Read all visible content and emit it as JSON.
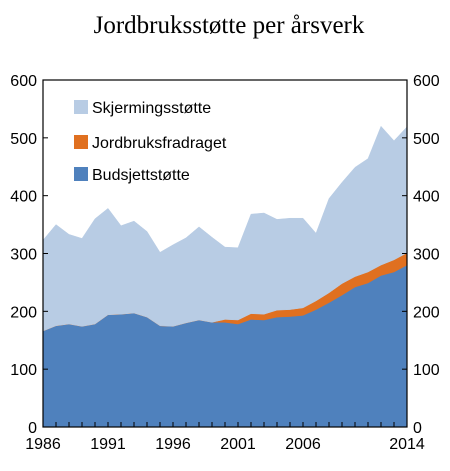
{
  "chart_data": {
    "type": "area",
    "title": "Jordbruksstøtte per årsverk",
    "xlabel": "",
    "ylabel": "",
    "x": [
      1986,
      1987,
      1988,
      1989,
      1990,
      1991,
      1992,
      1993,
      1994,
      1995,
      1996,
      1997,
      1998,
      1999,
      2000,
      2001,
      2002,
      2003,
      2004,
      2005,
      2006,
      2007,
      2008,
      2009,
      2010,
      2011,
      2012,
      2013,
      2014
    ],
    "xticks": [
      "1986",
      "1991",
      "1996",
      "2001",
      "2006",
      "2014"
    ],
    "xlim": [
      1986,
      2014
    ],
    "yticks_left": [
      "0",
      "100",
      "200",
      "300",
      "400",
      "500",
      "600"
    ],
    "yticks_right": [
      "0",
      "100",
      "200",
      "300",
      "400",
      "500",
      "600"
    ],
    "ylim": [
      0,
      600
    ],
    "stacked": true,
    "series": [
      {
        "name": "Budsjettstøtte",
        "color": "#4f81bd",
        "values": [
          166,
          175,
          178,
          174,
          178,
          194,
          195,
          197,
          190,
          175,
          174,
          180,
          185,
          181,
          181,
          178,
          186,
          185,
          190,
          191,
          193,
          203,
          215,
          228,
          242,
          249,
          262,
          268,
          280
        ]
      },
      {
        "name": "Jordbruksfradraget",
        "color": "#e07020",
        "values": [
          0,
          0,
          0,
          0,
          0,
          0,
          0,
          0,
          0,
          0,
          0,
          0,
          0,
          0,
          5,
          7,
          10,
          10,
          12,
          12,
          13,
          15,
          17,
          20,
          18,
          19,
          18,
          21,
          21
        ]
      },
      {
        "name": "Skjermingsstøtte",
        "color": "#b8cce4",
        "values": [
          157,
          175,
          155,
          152,
          182,
          184,
          153,
          159,
          148,
          127,
          141,
          147,
          161,
          147,
          125,
          125,
          172,
          175,
          157,
          158,
          155,
          117,
          163,
          175,
          189,
          196,
          240,
          206,
          218
        ]
      }
    ],
    "legend": {
      "placement": "top-left",
      "entries": [
        "Skjermingsstøtte",
        "Jordbruksfradraget",
        "Budsjettstøtte"
      ]
    },
    "grid": false
  }
}
